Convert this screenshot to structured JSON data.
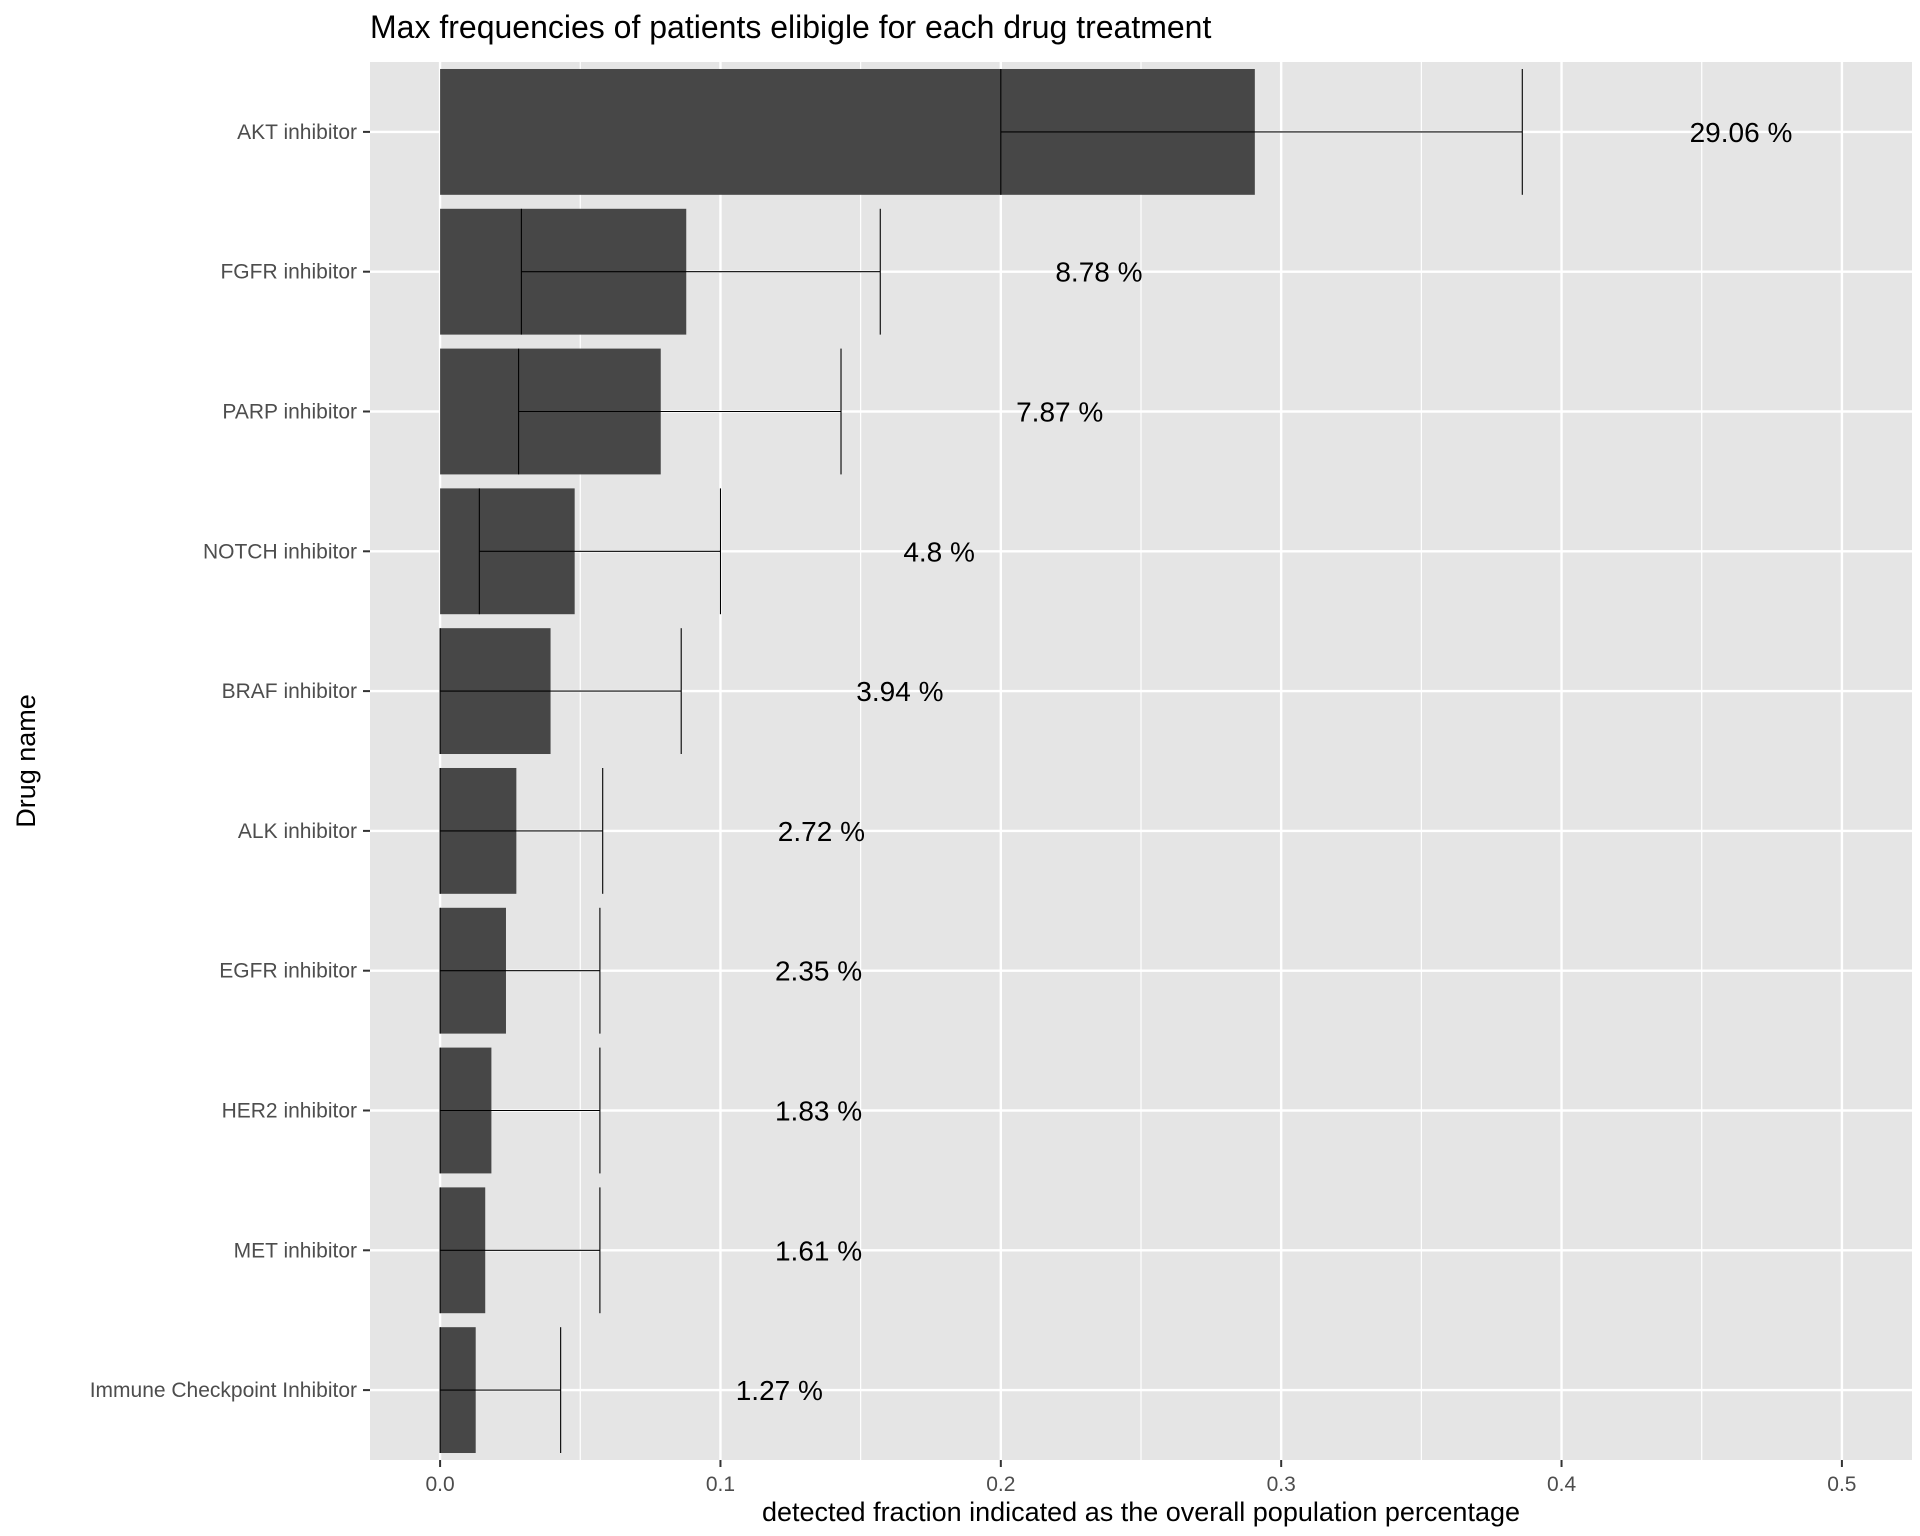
{
  "chart_data": {
    "type": "bar",
    "orientation": "horizontal",
    "title": "Max frequencies of patients elibigle for each drug treatment",
    "xlabel": "detected fraction indicated as the overall population percentage",
    "ylabel": "Drug name",
    "xlim": [
      -0.025,
      0.525
    ],
    "x_ticks": [
      0.0,
      0.1,
      0.2,
      0.3,
      0.4,
      0.5
    ],
    "x_tick_labels": [
      "0.0",
      "0.1",
      "0.2",
      "0.3",
      "0.4",
      "0.5"
    ],
    "grid": true,
    "categories": [
      "AKT inhibitor",
      "FGFR inhibitor",
      "PARP inhibitor",
      "NOTCH inhibitor",
      "BRAF inhibitor",
      "ALK inhibitor",
      "EGFR inhibitor",
      "HER2 inhibitor",
      "MET inhibitor",
      "Immune Checkpoint Inhibitor"
    ],
    "values": [
      0.2906,
      0.0878,
      0.0787,
      0.048,
      0.0394,
      0.0272,
      0.0235,
      0.0183,
      0.0161,
      0.0127
    ],
    "error_low": [
      0.2,
      0.029,
      0.028,
      0.014,
      0.0,
      0.0,
      0.0,
      0.0,
      0.0,
      0.0
    ],
    "error_high": [
      0.386,
      0.157,
      0.143,
      0.1,
      0.086,
      0.058,
      0.057,
      0.057,
      0.057,
      0.043
    ],
    "data_labels": [
      "29.06 %",
      "8.78 %",
      "7.87 %",
      "4.8 %",
      "3.94 %",
      "2.72 %",
      "2.35 %",
      "1.83 %",
      "1.61 %",
      "1.27 %"
    ],
    "colors": {
      "bar": "#474747",
      "panel": "#e5e5e5",
      "grid": "#ffffff",
      "errorbar": "#000000",
      "tick_text": "#4d4d4d"
    }
  }
}
